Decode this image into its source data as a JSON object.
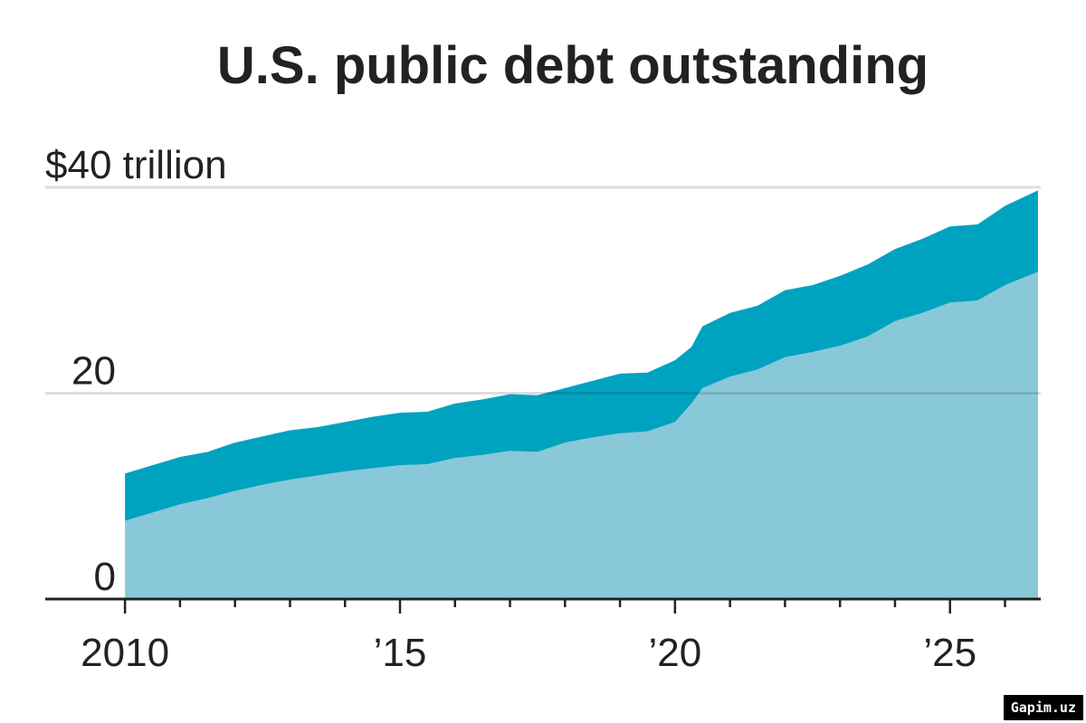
{
  "chart_data": {
    "type": "stacked_area",
    "title": "U.S. public debt outstanding",
    "x": [
      2010.0,
      2010.5,
      2011.0,
      2011.5,
      2012.0,
      2012.5,
      2013.0,
      2013.5,
      2014.0,
      2014.5,
      2015.0,
      2015.5,
      2016.0,
      2016.5,
      2017.0,
      2017.5,
      2018.0,
      2018.5,
      2019.0,
      2019.5,
      2020.0,
      2020.3,
      2020.5,
      2021.0,
      2021.5,
      2022.0,
      2022.5,
      2023.0,
      2023.5,
      2024.0,
      2024.5,
      2025.0,
      2025.5,
      2026.0,
      2026.6
    ],
    "series": [
      {
        "color": "#89c8d8",
        "values": [
          7.6,
          8.4,
          9.2,
          9.8,
          10.5,
          11.1,
          11.6,
          12.0,
          12.4,
          12.7,
          13.0,
          13.1,
          13.7,
          14.0,
          14.4,
          14.3,
          15.2,
          15.7,
          16.1,
          16.3,
          17.2,
          19.0,
          20.5,
          21.6,
          22.3,
          23.5,
          24.0,
          24.6,
          25.5,
          27.0,
          27.8,
          28.8,
          29.0,
          30.5,
          31.8
        ]
      },
      {
        "color": "#00a3bf",
        "values": [
          4.6,
          4.6,
          4.6,
          4.5,
          4.7,
          4.7,
          4.8,
          4.7,
          4.8,
          5.0,
          5.1,
          5.1,
          5.3,
          5.4,
          5.5,
          5.5,
          5.3,
          5.5,
          5.8,
          5.7,
          6.0,
          5.5,
          6.0,
          6.2,
          6.2,
          6.5,
          6.5,
          6.8,
          7.0,
          7.0,
          7.2,
          7.4,
          7.4,
          7.7,
          7.9
        ]
      }
    ],
    "xlim": [
      2008.55,
      2026.65
    ],
    "xticks": [
      {
        "value": 2010,
        "label": "2010"
      },
      {
        "value": 2015,
        "label": "’15"
      },
      {
        "value": 2020,
        "label": "’20"
      },
      {
        "value": 2025,
        "label": "’25"
      }
    ],
    "xticks_minor": [
      2011,
      2012,
      2013,
      2014,
      2016,
      2017,
      2018,
      2019,
      2021,
      2022,
      2023,
      2024,
      2026
    ],
    "ylim": [
      0,
      40
    ],
    "yticks": [
      0,
      20,
      {
        "value": 40,
        "label": "$40 trillion"
      }
    ],
    "grid": true
  },
  "watermark": "Gapim.uz"
}
